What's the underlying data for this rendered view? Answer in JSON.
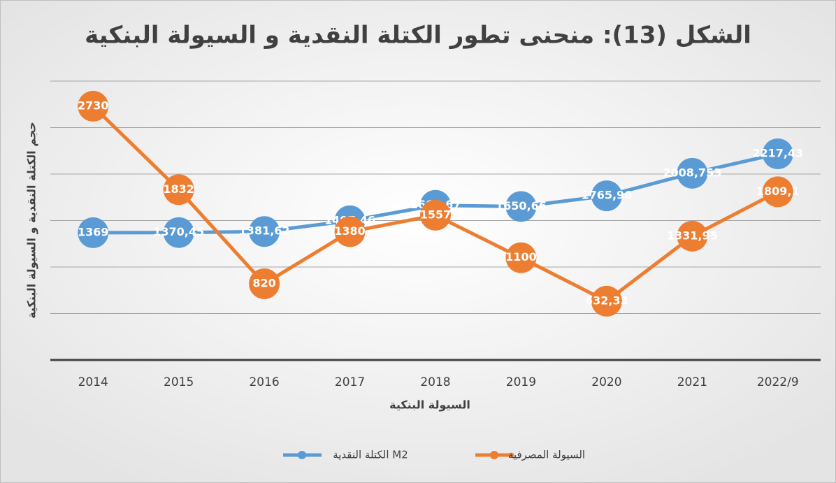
{
  "chart_data": {
    "type": "line",
    "title": "الشكل (13): منحنى تطور الكتلة النقدية و السيولة البنكية",
    "x_label": "السيولة البنكية",
    "y_label": "حجم الكتلة النقدية و السيولة البنكية",
    "categories": [
      "2014",
      "2015",
      "2016",
      "2017",
      "2018",
      "2019",
      "2020",
      "2021",
      "2022/9"
    ],
    "series": [
      {
        "name": "الكتلة النقدية M2",
        "color": "#5b9bd5",
        "values": [
          1369,
          1370.45,
          1381.62,
          1497.46,
          1663.67,
          1650.66,
          1765.96,
          2008.753,
          2217.43
        ],
        "value_labels": [
          "1369",
          "1370,45",
          "1381,62",
          "1497,46",
          "1663,67",
          "1650,66",
          "1765,96",
          "2008,753",
          "2217,43"
        ]
      },
      {
        "name": "السيولة المصرفية",
        "color": "#ed7d31",
        "values": [
          2730,
          1832,
          820,
          1380,
          1557,
          1100,
          632.33,
          1331.95,
          1809.1
        ],
        "value_labels": [
          "2730",
          "1832",
          "820",
          "1380",
          "1557",
          "1100",
          "632,33",
          "1331,95",
          "1809,1"
        ]
      }
    ],
    "ylim": [
      0,
      3000
    ],
    "yticks": [
      0,
      500,
      1000,
      1500,
      2000,
      2500,
      3000
    ],
    "grid": true,
    "legend": "bottom"
  }
}
